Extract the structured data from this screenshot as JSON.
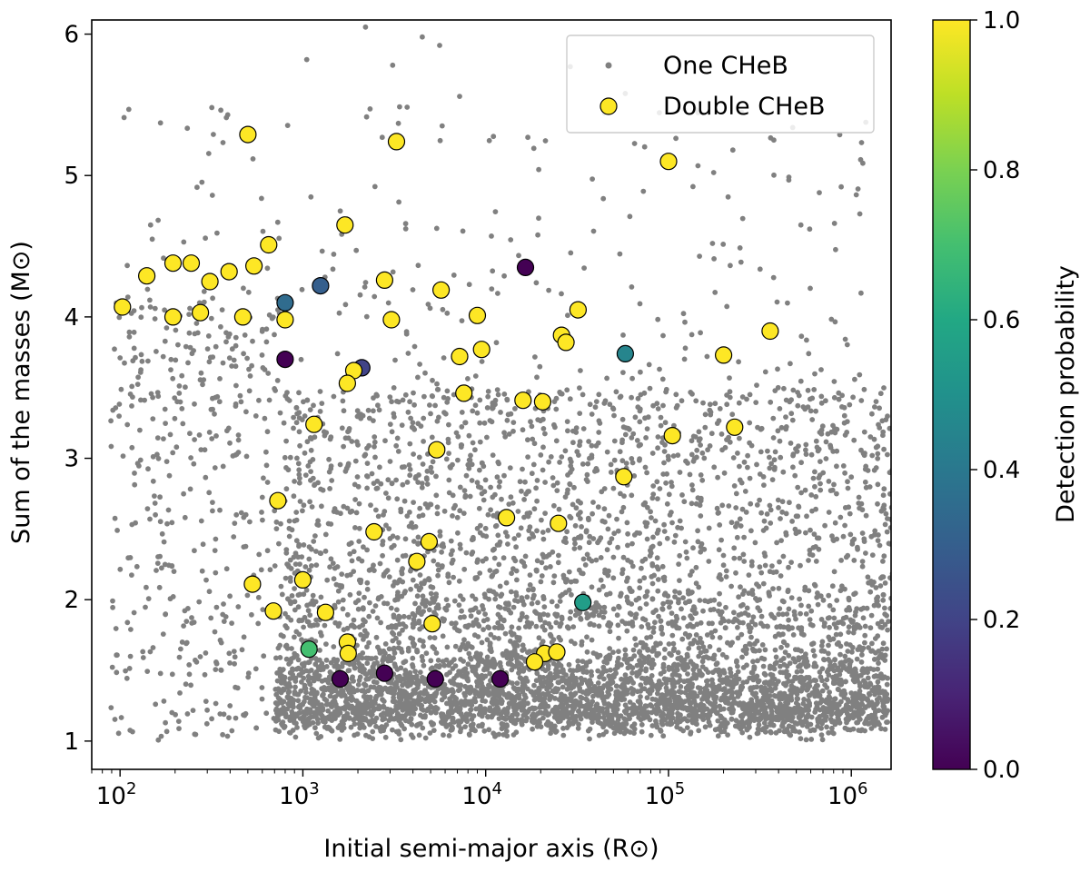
{
  "chart_data": {
    "type": "scatter",
    "xscale": "log",
    "xlim": [
      70,
      1650000
    ],
    "ylim": [
      0.8,
      6.1
    ],
    "xlabel": "Initial semi-major axis (R⊙)",
    "ylabel": "Sum of the masses (M⊙)",
    "xticks": [
      {
        "value": 100,
        "base": "10",
        "exp": "2"
      },
      {
        "value": 1000,
        "base": "10",
        "exp": "3"
      },
      {
        "value": 10000,
        "base": "10",
        "exp": "4"
      },
      {
        "value": 100000,
        "base": "10",
        "exp": "5"
      },
      {
        "value": 1000000,
        "base": "10",
        "exp": "6"
      }
    ],
    "yticks": [
      {
        "value": 1,
        "label": "1"
      },
      {
        "value": 2,
        "label": "2"
      },
      {
        "value": 3,
        "label": "3"
      },
      {
        "value": 4,
        "label": "4"
      },
      {
        "value": 5,
        "label": "5"
      },
      {
        "value": 6,
        "label": "6"
      }
    ],
    "legend": {
      "placement": "upper-right",
      "entries": [
        {
          "label": "One CHeB",
          "marker": "small-gray-dot",
          "color": "#808080"
        },
        {
          "label": "Double CHeB",
          "marker": "circle",
          "color": "#fde725"
        }
      ]
    },
    "colorbar": {
      "label": "Detection probability",
      "range": [
        0.0,
        1.0
      ],
      "colormap": "viridis",
      "ticks": [
        {
          "value": 0.0,
          "label": "0.0"
        },
        {
          "value": 0.2,
          "label": "0.2"
        },
        {
          "value": 0.4,
          "label": "0.4"
        },
        {
          "value": 0.6,
          "label": "0.6"
        },
        {
          "value": 0.8,
          "label": "0.8"
        },
        {
          "value": 1.0,
          "label": "1.0"
        }
      ]
    },
    "series": [
      {
        "name": "One CHeB",
        "color": "#808080",
        "approx_count": 6000,
        "distribution": "dense cloud at masses 1.0-2.0 for a 700-1.6e6; scattered points up to mass ~6 across a 90-1.6e6; sparse above mass 3.5",
        "highlight_points": [
          {
            "a": 1050,
            "m": 5.82
          },
          {
            "a": 2200,
            "m": 6.05
          },
          {
            "a": 4500,
            "m": 5.98
          },
          {
            "a": 5600,
            "m": 5.92
          },
          {
            "a": 3100,
            "m": 5.78
          },
          {
            "a": 29000,
            "m": 5.77
          },
          {
            "a": 7200,
            "m": 5.56
          },
          {
            "a": 17000,
            "m": 5.27
          },
          {
            "a": 58000,
            "m": 5.58
          },
          {
            "a": 225000,
            "m": 5.18
          },
          {
            "a": 320,
            "m": 4.86
          },
          {
            "a": 150,
            "m": 4.55
          },
          {
            "a": 530000,
            "m": 4.65
          },
          {
            "a": 880000,
            "m": 4.92
          }
        ]
      },
      {
        "name": "Double CHeB",
        "colorscale_field": "p",
        "points": [
          {
            "a": 500,
            "m": 5.29,
            "p": 1.0
          },
          {
            "a": 3250,
            "m": 5.24,
            "p": 1.0
          },
          {
            "a": 100000,
            "m": 5.1,
            "p": 1.0
          },
          {
            "a": 1700,
            "m": 4.65,
            "p": 1.0
          },
          {
            "a": 650,
            "m": 4.51,
            "p": 1.0
          },
          {
            "a": 16500,
            "m": 4.35,
            "p": 0.0
          },
          {
            "a": 140,
            "m": 4.29,
            "p": 1.0
          },
          {
            "a": 195,
            "m": 4.38,
            "p": 1.0
          },
          {
            "a": 245,
            "m": 4.38,
            "p": 1.0
          },
          {
            "a": 310,
            "m": 4.25,
            "p": 1.0
          },
          {
            "a": 395,
            "m": 4.32,
            "p": 1.0
          },
          {
            "a": 540,
            "m": 4.36,
            "p": 1.0
          },
          {
            "a": 2800,
            "m": 4.26,
            "p": 1.0
          },
          {
            "a": 1250,
            "m": 4.22,
            "p": 0.3
          },
          {
            "a": 5700,
            "m": 4.19,
            "p": 1.0
          },
          {
            "a": 800,
            "m": 4.1,
            "p": 0.35
          },
          {
            "a": 103,
            "m": 4.07,
            "p": 1.0
          },
          {
            "a": 32000,
            "m": 4.05,
            "p": 1.0
          },
          {
            "a": 195,
            "m": 4.0,
            "p": 1.0
          },
          {
            "a": 275,
            "m": 4.03,
            "p": 1.0
          },
          {
            "a": 470,
            "m": 4.0,
            "p": 1.0
          },
          {
            "a": 800,
            "m": 3.98,
            "p": 1.0
          },
          {
            "a": 3050,
            "m": 3.98,
            "p": 1.0
          },
          {
            "a": 9000,
            "m": 4.01,
            "p": 1.0
          },
          {
            "a": 360000,
            "m": 3.9,
            "p": 1.0
          },
          {
            "a": 26000,
            "m": 3.87,
            "p": 1.0
          },
          {
            "a": 27500,
            "m": 3.82,
            "p": 1.0
          },
          {
            "a": 9500,
            "m": 3.77,
            "p": 1.0
          },
          {
            "a": 58000,
            "m": 3.74,
            "p": 0.45
          },
          {
            "a": 200000,
            "m": 3.73,
            "p": 1.0
          },
          {
            "a": 7200,
            "m": 3.72,
            "p": 1.0
          },
          {
            "a": 800,
            "m": 3.7,
            "p": 0.0
          },
          {
            "a": 2100,
            "m": 3.64,
            "p": 0.2
          },
          {
            "a": 1900,
            "m": 3.62,
            "p": 1.0
          },
          {
            "a": 1750,
            "m": 3.53,
            "p": 1.0
          },
          {
            "a": 7600,
            "m": 3.46,
            "p": 1.0
          },
          {
            "a": 16000,
            "m": 3.41,
            "p": 1.0
          },
          {
            "a": 20500,
            "m": 3.4,
            "p": 1.0
          },
          {
            "a": 1150,
            "m": 3.24,
            "p": 1.0
          },
          {
            "a": 230000,
            "m": 3.22,
            "p": 1.0
          },
          {
            "a": 105000,
            "m": 3.16,
            "p": 1.0
          },
          {
            "a": 5400,
            "m": 3.06,
            "p": 1.0
          },
          {
            "a": 57000,
            "m": 2.87,
            "p": 1.0
          },
          {
            "a": 730,
            "m": 2.7,
            "p": 1.0
          },
          {
            "a": 13000,
            "m": 2.58,
            "p": 1.0
          },
          {
            "a": 25000,
            "m": 2.54,
            "p": 1.0
          },
          {
            "a": 2450,
            "m": 2.48,
            "p": 1.0
          },
          {
            "a": 4900,
            "m": 2.41,
            "p": 1.0
          },
          {
            "a": 4200,
            "m": 2.27,
            "p": 1.0
          },
          {
            "a": 1000,
            "m": 2.14,
            "p": 1.0
          },
          {
            "a": 530,
            "m": 2.11,
            "p": 1.0
          },
          {
            "a": 34000,
            "m": 1.98,
            "p": 0.55
          },
          {
            "a": 690,
            "m": 1.92,
            "p": 1.0
          },
          {
            "a": 1330,
            "m": 1.91,
            "p": 1.0
          },
          {
            "a": 5100,
            "m": 1.83,
            "p": 1.0
          },
          {
            "a": 1750,
            "m": 1.7,
            "p": 1.0
          },
          {
            "a": 1080,
            "m": 1.65,
            "p": 0.7
          },
          {
            "a": 1770,
            "m": 1.62,
            "p": 1.0
          },
          {
            "a": 21000,
            "m": 1.62,
            "p": 1.0
          },
          {
            "a": 24500,
            "m": 1.63,
            "p": 1.0
          },
          {
            "a": 18500,
            "m": 1.56,
            "p": 1.0
          },
          {
            "a": 2800,
            "m": 1.48,
            "p": 0.0
          },
          {
            "a": 1600,
            "m": 1.44,
            "p": 0.0
          },
          {
            "a": 5300,
            "m": 1.44,
            "p": 0.0
          },
          {
            "a": 12000,
            "m": 1.44,
            "p": 0.0
          }
        ]
      }
    ]
  }
}
